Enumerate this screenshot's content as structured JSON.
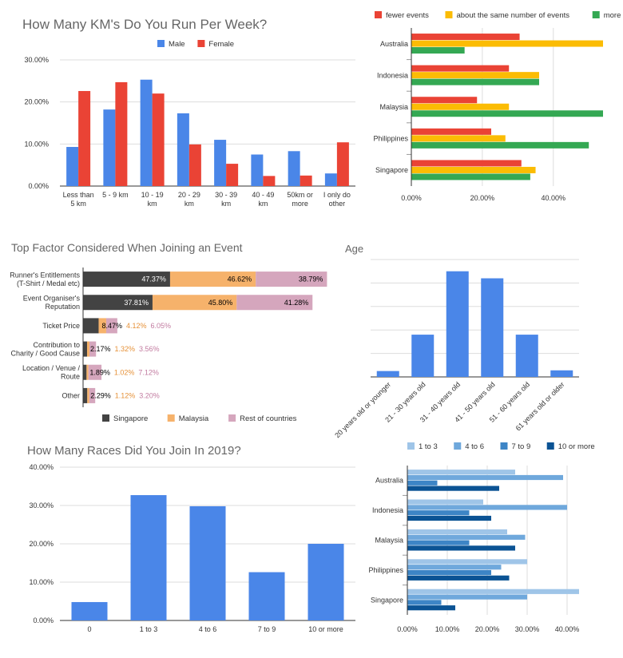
{
  "colors": {
    "male": "#4a86e8",
    "female": "#ea4335",
    "fewer": "#ea4335",
    "same": "#fbbc04",
    "more": "#34a853",
    "singapore": "#434343",
    "malaysia": "#f6b26b",
    "rest": "#d5a6bd",
    "age": "#4a86e8",
    "races": "#4a86e8",
    "r1to3": "#9fc5e8",
    "r4to6": "#6fa8dc",
    "r7to9": "#3d85c6",
    "r10": "#0b5394"
  },
  "chart_data": [
    {
      "id": "km_per_week",
      "type": "bar",
      "title": "How Many KM's Do You Run Per Week?",
      "xlabel": "",
      "ylabel": "",
      "categories": [
        [
          "Less than",
          "5 km"
        ],
        [
          "5 - 9 km"
        ],
        [
          "10 - 19",
          "km"
        ],
        [
          "20 - 29",
          "km"
        ],
        [
          "30 - 39",
          "km"
        ],
        [
          "40 - 49",
          "km"
        ],
        [
          "50km or",
          "more"
        ],
        [
          "I only do",
          "other"
        ]
      ],
      "series": [
        {
          "name": "Male",
          "values": [
            9.3,
            18.2,
            25.3,
            17.3,
            11.0,
            7.5,
            8.3,
            3.0
          ]
        },
        {
          "name": "Female",
          "values": [
            22.6,
            24.7,
            22.0,
            9.9,
            5.3,
            2.4,
            2.5,
            10.4
          ]
        }
      ],
      "ylim": [
        0,
        30
      ],
      "yticks": [
        "0.00%",
        "10.00%",
        "20.00%",
        "30.00%"
      ],
      "legend": "top",
      "grid": true
    },
    {
      "id": "events_by_country",
      "type": "bar",
      "orientation": "horizontal",
      "title": "",
      "categories": [
        "Australia",
        "Indonesia",
        "Malaysia",
        "Philippines",
        "Singapore"
      ],
      "series": [
        {
          "name": "fewer events",
          "values": [
            30.5,
            27.5,
            18.5,
            22.5,
            31.0
          ]
        },
        {
          "name": "about the same number of events",
          "values": [
            54.0,
            36.0,
            27.5,
            26.5,
            35.0
          ]
        },
        {
          "name": "more events",
          "values": [
            15.0,
            36.0,
            54.0,
            50.0,
            33.5
          ]
        }
      ],
      "xlim": [
        0,
        54
      ],
      "xticks": [
        "0.00%",
        "20.00%",
        "40.00%"
      ],
      "legend": "top",
      "grid": true
    },
    {
      "id": "top_factor",
      "type": "bar",
      "orientation": "horizontal",
      "stacked": true,
      "title": "Top Factor Considered When Joining an Event",
      "categories": [
        [
          "Runner's Entitlements",
          "(T-Shirt / Medal etc)"
        ],
        [
          "Event Organiser's",
          "Reputation"
        ],
        [
          "Ticket Price"
        ],
        [
          "Contribution to",
          "Charity / Good Cause"
        ],
        [
          "Location / Venue /",
          "Route"
        ],
        [
          "Other"
        ]
      ],
      "series": [
        {
          "name": "Singapore",
          "values": [
            47.37,
            37.81,
            8.47,
            2.17,
            1.89,
            2.29
          ],
          "labels": [
            "47.37%",
            "37.81%",
            "8.47%",
            "2.17%",
            "1.89%",
            "2.29%"
          ]
        },
        {
          "name": "Malaysia",
          "values": [
            46.62,
            45.8,
            4.12,
            1.32,
            1.02,
            1.12
          ],
          "labels": [
            "46.62%",
            "45.80%",
            "4.12%",
            "1.32%",
            "1.02%",
            "1.12%"
          ]
        },
        {
          "name": "Rest of countries",
          "values": [
            38.79,
            41.28,
            6.05,
            3.56,
            7.12,
            3.2
          ],
          "labels": [
            "38.79%",
            "41.28%",
            "6.05%",
            "3.56%",
            "7.12%",
            "3.20%"
          ]
        }
      ],
      "legend": "bottom",
      "grid": false
    },
    {
      "id": "age",
      "type": "bar",
      "title": "Age",
      "categories": [
        "20 years old or younger",
        "21 - 30 years old",
        "31 - 40 years old",
        "41 - 50 years old",
        "51 - 60 years old",
        "61 years old or older"
      ],
      "values": [
        2.5,
        18,
        45,
        42,
        18,
        2.8
      ],
      "ylim": [
        0,
        50
      ],
      "yticks": [],
      "grid": true
    },
    {
      "id": "races_2019",
      "type": "bar",
      "title": "How Many Races Did You Join In 2019?",
      "categories": [
        "0",
        "1 to 3",
        "4 to 6",
        "7 to 9",
        "10 or more"
      ],
      "values": [
        4.8,
        32.7,
        29.8,
        12.6,
        20.0
      ],
      "ylim": [
        0,
        40
      ],
      "yticks": [
        "0.00%",
        "10.00%",
        "20.00%",
        "30.00%",
        "40.00%"
      ],
      "grid": true
    },
    {
      "id": "races_by_country",
      "type": "bar",
      "orientation": "horizontal",
      "title": "",
      "categories": [
        "Australia",
        "Indonesia",
        "Malaysia",
        "Philippines",
        "Singapore"
      ],
      "series": [
        {
          "name": "1 to 3",
          "values": [
            27.0,
            19.0,
            25.0,
            30.0,
            43.0
          ]
        },
        {
          "name": "4 to 6",
          "values": [
            39.0,
            40.0,
            29.5,
            23.5,
            30.0
          ]
        },
        {
          "name": "7 to 9",
          "values": [
            7.5,
            15.5,
            15.5,
            21.0,
            8.5
          ]
        },
        {
          "name": "10 or more",
          "values": [
            23.0,
            21.0,
            27.0,
            25.5,
            12.0
          ]
        }
      ],
      "xlim": [
        0,
        43
      ],
      "xticks": [
        "0.00%",
        "10.00%",
        "20.00%",
        "30.00%",
        "40.00%"
      ],
      "legend": "top",
      "grid": true
    }
  ]
}
